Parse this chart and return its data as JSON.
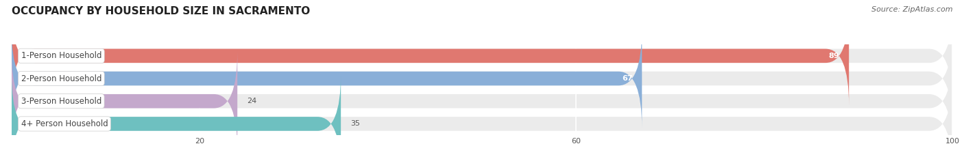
{
  "title": "OCCUPANCY BY HOUSEHOLD SIZE IN SACRAMENTO",
  "source": "Source: ZipAtlas.com",
  "categories": [
    "1-Person Household",
    "2-Person Household",
    "3-Person Household",
    "4+ Person Household"
  ],
  "values": [
    89,
    67,
    24,
    35
  ],
  "bar_colors": [
    "#E07870",
    "#8AAFD8",
    "#C4A8CC",
    "#6EC0C0"
  ],
  "xlim": [
    0,
    100
  ],
  "xticks": [
    20,
    60,
    100
  ],
  "bar_height": 0.62,
  "figsize": [
    14.06,
    2.33
  ],
  "dpi": 100,
  "bg_color": "#FFFFFF",
  "bar_bg_color": "#EBEBEB",
  "label_text_color": "#444444",
  "value_color_inside": "#FFFFFF",
  "value_color_outside": "#555555",
  "title_fontsize": 11,
  "label_fontsize": 8.5,
  "value_fontsize": 8,
  "source_fontsize": 8,
  "tick_fontsize": 8
}
